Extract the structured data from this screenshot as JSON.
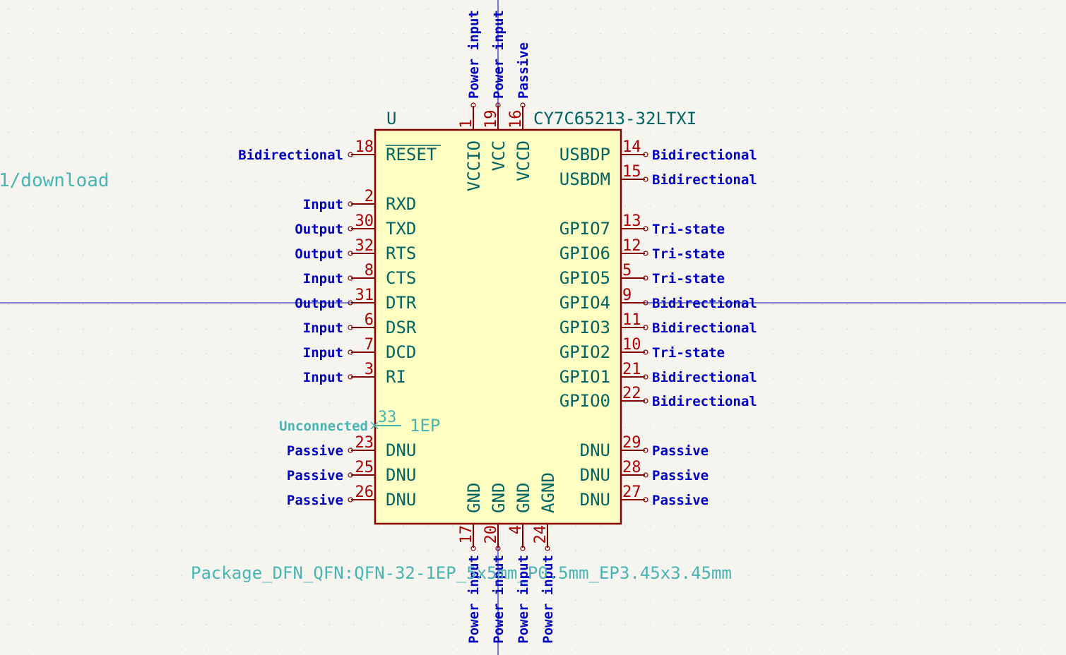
{
  "component": {
    "reference": "U",
    "value": "CY7C65213-32LTXI",
    "footprint": "Package_DFN_QFN:QFN-32-1EP_5x5mm_P0.5mm_EP3.45x3.45mm",
    "offscreen_field": "1/download"
  },
  "colors": {
    "background": "#f5f4ef",
    "grid_dot": "#c8c8c0",
    "body_fill": "#ffffc2",
    "body_stroke": "#840000",
    "pin_line": "#840000",
    "pin_number": "#a90000",
    "pin_name": "#006464",
    "pin_type": "#0000c2",
    "field_text": "#006464",
    "footprint_text": "#48b4b4",
    "unconnected": "#48b4b4",
    "crosshair": "#0000aa"
  },
  "pins": {
    "left": [
      {
        "number": "18",
        "name": "RESET",
        "overbar": true,
        "type": "Bidirectional"
      },
      {
        "number": "2",
        "name": "RXD",
        "type": "Input"
      },
      {
        "number": "30",
        "name": "TXD",
        "type": "Output"
      },
      {
        "number": "32",
        "name": "RTS",
        "type": "Output"
      },
      {
        "number": "8",
        "name": "CTS",
        "type": "Input"
      },
      {
        "number": "31",
        "name": "DTR",
        "type": "Output"
      },
      {
        "number": "6",
        "name": "DSR",
        "type": "Input"
      },
      {
        "number": "7",
        "name": "DCD",
        "type": "Input"
      },
      {
        "number": "3",
        "name": "RI",
        "type": "Input"
      },
      {
        "number": "23",
        "name": "DNU",
        "type": "Passive"
      },
      {
        "number": "25",
        "name": "DNU",
        "type": "Passive"
      },
      {
        "number": "26",
        "name": "DNU",
        "type": "Passive"
      }
    ],
    "right": [
      {
        "number": "14",
        "name": "USBDP",
        "type": "Bidirectional"
      },
      {
        "number": "15",
        "name": "USBDM",
        "type": "Bidirectional"
      },
      {
        "number": "13",
        "name": "GPIO7",
        "type": "Tri-state"
      },
      {
        "number": "12",
        "name": "GPIO6",
        "type": "Tri-state"
      },
      {
        "number": "5",
        "name": "GPIO5",
        "type": "Tri-state"
      },
      {
        "number": "9",
        "name": "GPIO4",
        "type": "Bidirectional"
      },
      {
        "number": "11",
        "name": "GPIO3",
        "type": "Bidirectional"
      },
      {
        "number": "10",
        "name": "GPIO2",
        "type": "Tri-state"
      },
      {
        "number": "21",
        "name": "GPIO1",
        "type": "Bidirectional"
      },
      {
        "number": "22",
        "name": "GPIO0",
        "type": "Bidirectional"
      },
      {
        "number": "29",
        "name": "DNU",
        "type": "Passive"
      },
      {
        "number": "28",
        "name": "DNU",
        "type": "Passive"
      },
      {
        "number": "27",
        "name": "DNU",
        "type": "Passive"
      }
    ],
    "top": [
      {
        "number": "1",
        "name": "VCCIO",
        "type": "Power input"
      },
      {
        "number": "19",
        "name": "VCC",
        "type": "Power input"
      },
      {
        "number": "16",
        "name": "VCCD",
        "type": "Passive"
      }
    ],
    "bottom": [
      {
        "number": "17",
        "name": "GND",
        "type": "Power input"
      },
      {
        "number": "20",
        "name": "GND",
        "type": "Power input"
      },
      {
        "number": "4",
        "name": "GND",
        "type": "Power input"
      },
      {
        "number": "24",
        "name": "AGND",
        "type": "Power input"
      }
    ],
    "exposed_pad": {
      "number": "33",
      "name": "1EP",
      "type": "Unconnected"
    }
  }
}
